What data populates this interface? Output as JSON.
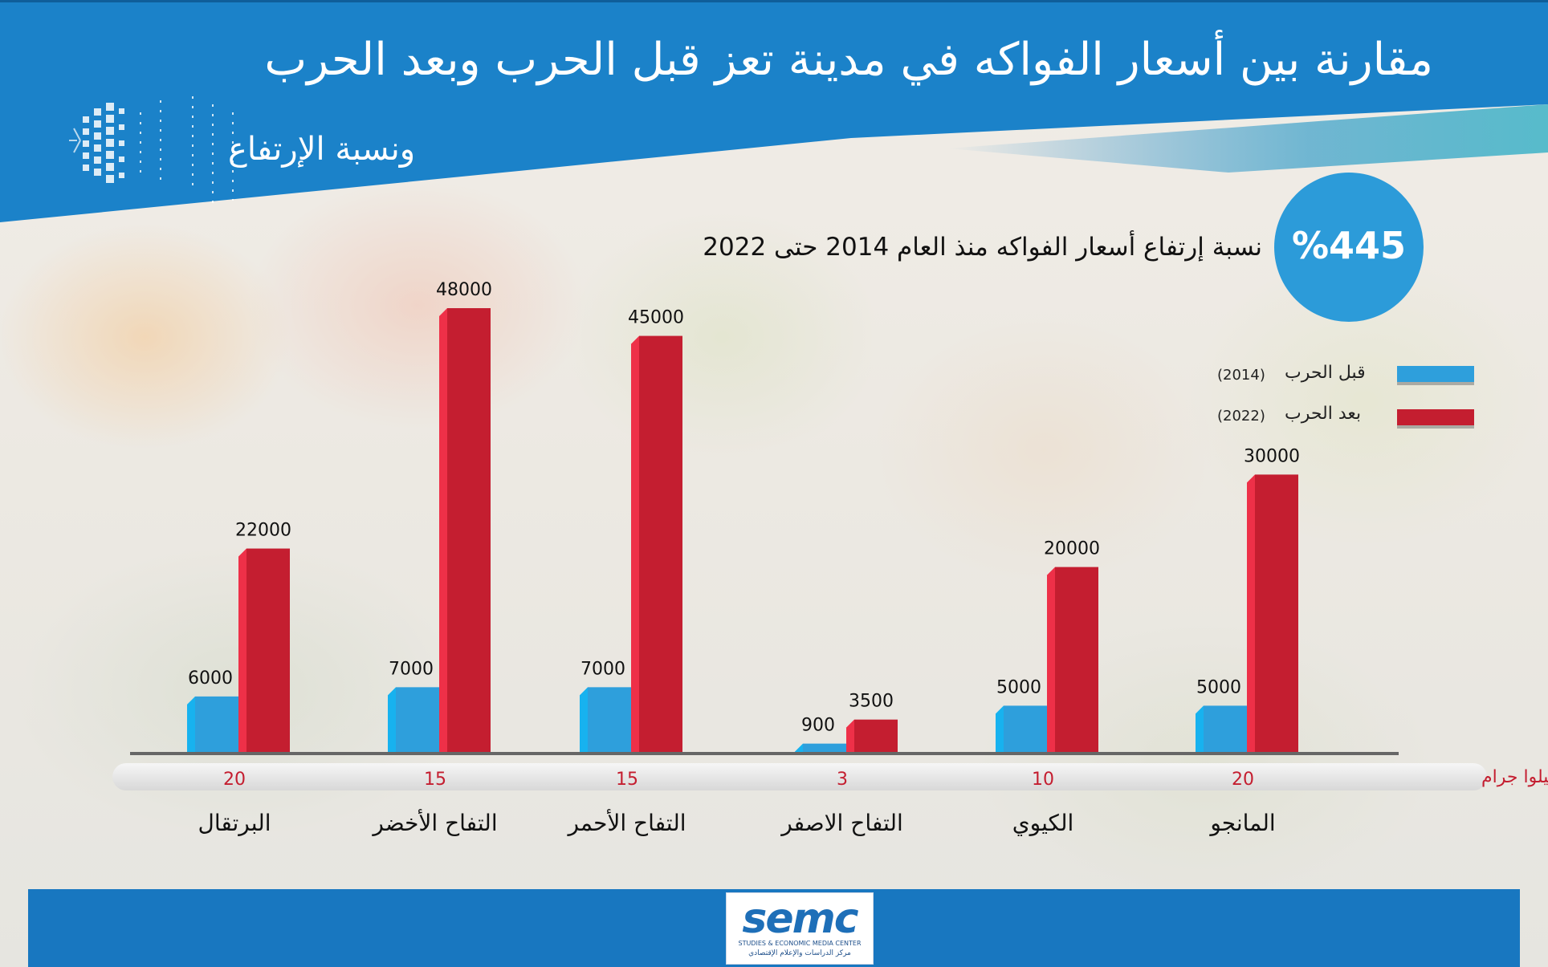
{
  "title": "مقارنة بين أسعار الفواكه في مدينة تعز قبل الحرب وبعد الحرب",
  "subtitle": "ونسبة الإرتفاع",
  "rise": {
    "percent_label": "%445",
    "text": "نسبة إرتفاع أسعار الفواكه منذ العام 2014 حتى 2022"
  },
  "legend": [
    {
      "label": "قبل الحرب",
      "year": "(2014)",
      "color": "#2e9fdc"
    },
    {
      "label": "بعد الحرب",
      "year": "(2022)",
      "color": "#c41e30"
    }
  ],
  "quantity_label": "الكمية بالكيلوا جرام",
  "logo": {
    "text": "semc",
    "subtitle_en": "STUDIES & ECONOMIC MEDIA CENTER",
    "subtitle_ar": "مركز الدراسات والإعلام الإقتصادي"
  },
  "colors": {
    "header_blue": "#1b82c9",
    "footer_blue": "#1877c0",
    "before_bar": "#2e9fdc",
    "after_bar": "#c41e30",
    "quantity_text": "#c41e30"
  },
  "chart_data": {
    "type": "bar",
    "categories": [
      "البرتقال",
      "التفاح الأخضر",
      "التفاح الأحمر",
      "التفاح الاصفر",
      "الكيوي",
      "المانجو"
    ],
    "quantities": [
      "20",
      "15",
      "15",
      "3",
      "10",
      "20"
    ],
    "series": [
      {
        "name": "قبل الحرب (2014)",
        "values": [
          6000,
          7000,
          7000,
          900,
          5000,
          5000
        ]
      },
      {
        "name": "بعد الحرب (2022)",
        "values": [
          22000,
          48000,
          45000,
          3500,
          20000,
          30000
        ]
      }
    ],
    "value_labels": {
      "before": [
        "6000",
        "7000",
        "7000",
        "900",
        "5000",
        "5000"
      ],
      "after": [
        "22000",
        "48000",
        "45000",
        "3500",
        "20000",
        "30000"
      ]
    },
    "ylim": [
      0,
      48000
    ],
    "grid": false,
    "legend_position": "top-right"
  }
}
